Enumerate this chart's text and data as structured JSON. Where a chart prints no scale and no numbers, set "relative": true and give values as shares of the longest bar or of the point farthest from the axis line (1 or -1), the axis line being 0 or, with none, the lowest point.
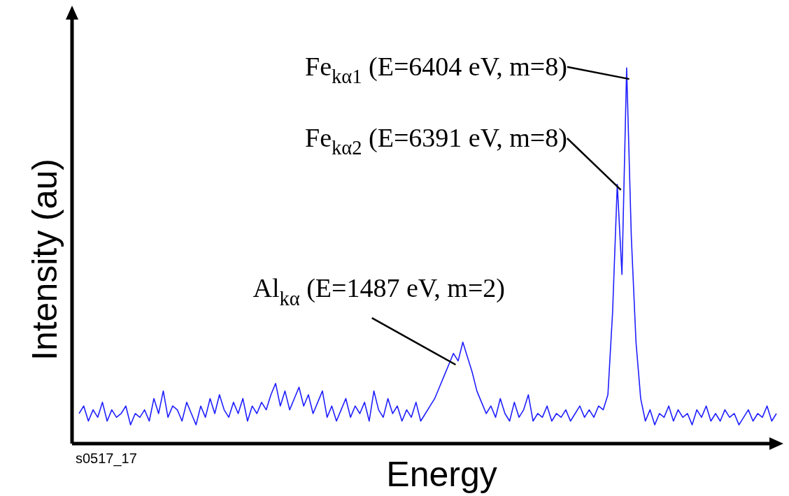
{
  "chart_data": {
    "type": "line",
    "relative": true,
    "xlabel": "Energy",
    "ylabel": "Intensity (au)",
    "color": "#1f1fff",
    "marker": "none",
    "legend": false,
    "categories": [
      null,
      null,
      null,
      null,
      null,
      null,
      null,
      null,
      null,
      null,
      null,
      null,
      null,
      null,
      null,
      null,
      null,
      null,
      null,
      null,
      null,
      null,
      null,
      null,
      null,
      null,
      null,
      null,
      null,
      null,
      null,
      null,
      null,
      null,
      null,
      null,
      null,
      null,
      null,
      null,
      null,
      null,
      null,
      null,
      null,
      null,
      null,
      null,
      null,
      null,
      null,
      null,
      null,
      null,
      null,
      null,
      null,
      null,
      null,
      null,
      null,
      null,
      null,
      null,
      null,
      null,
      null,
      null,
      null,
      null,
      null,
      null,
      null,
      null,
      null,
      null,
      null,
      null,
      null,
      null,
      null,
      null,
      null,
      null,
      null,
      null,
      null,
      null,
      null,
      null,
      null,
      null,
      null,
      null,
      null,
      null,
      null,
      null,
      null,
      null,
      null,
      null,
      null,
      null,
      null,
      null,
      null,
      null,
      null,
      null,
      null,
      null,
      null,
      null,
      null,
      null,
      null,
      null,
      null,
      null,
      null,
      null,
      null,
      null,
      null,
      null,
      null,
      null,
      null,
      null,
      null,
      null,
      null,
      null,
      null,
      null,
      null,
      null,
      null,
      null,
      null,
      null,
      null,
      null,
      null,
      null,
      null,
      null,
      null,
      null
    ],
    "values": [
      0.08,
      0.1,
      0.06,
      0.09,
      0.07,
      0.11,
      0.06,
      0.09,
      0.07,
      0.08,
      0.1,
      0.05,
      0.08,
      0.07,
      0.09,
      0.06,
      0.12,
      0.08,
      0.14,
      0.07,
      0.1,
      0.09,
      0.06,
      0.11,
      0.08,
      0.05,
      0.1,
      0.07,
      0.12,
      0.08,
      0.13,
      0.09,
      0.07,
      0.11,
      0.08,
      0.12,
      0.06,
      0.1,
      0.08,
      0.11,
      0.09,
      0.13,
      0.16,
      0.1,
      0.14,
      0.09,
      0.12,
      0.15,
      0.1,
      0.13,
      0.08,
      0.11,
      0.14,
      0.07,
      0.1,
      0.06,
      0.09,
      0.12,
      0.07,
      0.1,
      0.08,
      0.11,
      0.06,
      0.14,
      0.09,
      0.07,
      0.12,
      0.08,
      0.1,
      0.06,
      0.09,
      0.07,
      0.11,
      0.06,
      0.08,
      0.1,
      0.12,
      0.15,
      0.18,
      0.21,
      0.24,
      0.22,
      0.27,
      0.23,
      0.19,
      0.14,
      0.11,
      0.08,
      0.1,
      0.07,
      0.12,
      0.08,
      0.06,
      0.11,
      0.07,
      0.09,
      0.13,
      0.06,
      0.08,
      0.07,
      0.1,
      0.06,
      0.08,
      0.07,
      0.09,
      0.06,
      0.08,
      0.1,
      0.07,
      0.09,
      0.07,
      0.1,
      0.09,
      0.13,
      0.35,
      0.69,
      0.45,
      1,
      0.55,
      0.27,
      0.12,
      0.06,
      0.09,
      0.05,
      0.08,
      0.07,
      0.1,
      0.06,
      0.09,
      0.07,
      0.08,
      0.05,
      0.09,
      0.07,
      0.1,
      0.06,
      0.08,
      0.06,
      0.09,
      0.07,
      0.08,
      0.05,
      0.07,
      0.09,
      0.06,
      0.08,
      0.07,
      0.1,
      0.06,
      0.08
    ],
    "annotations": [
      "Fe$_{kα1}$ (E=6404 eV, m=8)",
      "Fe$_{kα2}$ (E=6391 eV, m=8)",
      "Al$_{kα}$ (E=1487 eV, m=2)",
      "s0517_17"
    ]
  }
}
